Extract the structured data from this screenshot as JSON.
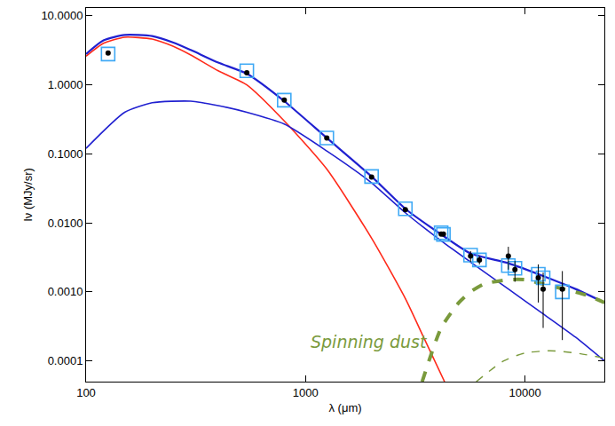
{
  "chart_data": {
    "type": "line",
    "x_label": "λ (μm)",
    "y_label": "Iν (MJy/sr)",
    "log": true,
    "grid": false,
    "xlim": [
      100,
      23000
    ],
    "ylim": [
      5e-05,
      13
    ],
    "xticks": [
      100,
      1000,
      10000
    ],
    "yticks": [
      {
        "value": 10,
        "label": "10.0000"
      },
      {
        "value": 1,
        "label": "1.0000"
      },
      {
        "value": 0.1,
        "label": "0.1000"
      },
      {
        "value": 0.01,
        "label": "0.0100"
      },
      {
        "value": 0.001,
        "label": "0.0010"
      },
      {
        "value": 0.0001,
        "label": "0.0001"
      }
    ],
    "annotations": [
      {
        "text": "Spinning dust",
        "color": "#7a9a3c"
      }
    ],
    "series": [
      {
        "type": "line",
        "color": "#ff2a1a",
        "line_style": "solid",
        "x": [
          100,
          120,
          150,
          200,
          250,
          300,
          400,
          540,
          800,
          1250,
          2000,
          2850,
          3500,
          4300
        ],
        "values": [
          2.6,
          4.0,
          4.9,
          4.6,
          3.6,
          2.7,
          1.6,
          1.0,
          0.3,
          0.06,
          0.006,
          0.0008,
          0.0002,
          5e-05
        ]
      },
      {
        "type": "line",
        "color": "#2020d0",
        "line_style": "solid",
        "x": [
          100,
          150,
          200,
          300,
          400,
          540,
          800,
          1250,
          2000,
          2850,
          4150,
          5650,
          8400,
          12100,
          17000,
          23000
        ],
        "values": [
          0.12,
          0.4,
          0.55,
          0.58,
          0.5,
          0.4,
          0.27,
          0.11,
          0.038,
          0.014,
          0.0055,
          0.0027,
          0.0011,
          0.00048,
          0.00022,
          0.0001
        ]
      },
      {
        "type": "line",
        "color": "#2020d0",
        "line_style": "solid",
        "x": [
          100,
          120,
          150,
          200,
          250,
          300,
          400,
          540,
          800,
          1250,
          2000,
          2850,
          4150,
          5650,
          8400,
          12100,
          17000,
          23000
        ],
        "values": [
          2.8,
          4.4,
          5.3,
          5.1,
          4.1,
          3.2,
          2.1,
          1.45,
          0.58,
          0.17,
          0.047,
          0.016,
          0.0068,
          0.0036,
          0.0026,
          0.0017,
          0.0011,
          0.0007
        ]
      },
      {
        "type": "line",
        "color": "#7a9a3c",
        "line_style": "dash",
        "x": [
          3400,
          4150,
          5000,
          5650,
          6500,
          8400,
          10000,
          12100,
          15000,
          19000,
          23000
        ],
        "values": [
          5e-05,
          0.0003,
          0.0007,
          0.001,
          0.0013,
          0.0015,
          0.0015,
          0.0013,
          0.0011,
          0.0009,
          0.0007
        ]
      },
      {
        "type": "line",
        "color": "#7a9a3c",
        "line_style": "dash",
        "x": [
          6000,
          8000,
          10000,
          13000,
          17000,
          23000
        ],
        "values": [
          5e-05,
          0.0001,
          0.00013,
          0.00014,
          0.00013,
          0.00011
        ]
      },
      {
        "type": "scatter",
        "color": "#3fa9f5",
        "marker": "square-open",
        "x": [
          126,
          540,
          800,
          1250,
          2000,
          2850,
          4150,
          4250,
          5650,
          6200,
          8400,
          9000,
          11500,
          12100,
          14800
        ],
        "values": [
          2.8,
          1.6,
          0.6,
          0.17,
          0.047,
          0.016,
          0.0072,
          0.0068,
          0.0034,
          0.0029,
          0.0024,
          0.0022,
          0.0018,
          0.0016,
          0.001
        ]
      },
      {
        "type": "scatter",
        "color": "#000000",
        "marker": "circle",
        "x": [
          126,
          540,
          800,
          1250,
          2000,
          2850,
          4150,
          4250,
          5650,
          6200,
          8400,
          9000,
          11500,
          12100,
          14800
        ],
        "values": [
          2.9,
          1.5,
          0.6,
          0.17,
          0.046,
          0.0155,
          0.0069,
          0.0069,
          0.0033,
          0.0029,
          0.0033,
          0.0021,
          0.0016,
          0.0011,
          0.0011
        ],
        "errors": [
          0.15,
          0.08,
          0.03,
          0.009,
          0.0025,
          0.0008,
          0.0004,
          0.0004,
          0.0006,
          0.0004,
          0.0012,
          0.0007,
          0.0009,
          0.0008,
          0.0009
        ]
      }
    ]
  }
}
